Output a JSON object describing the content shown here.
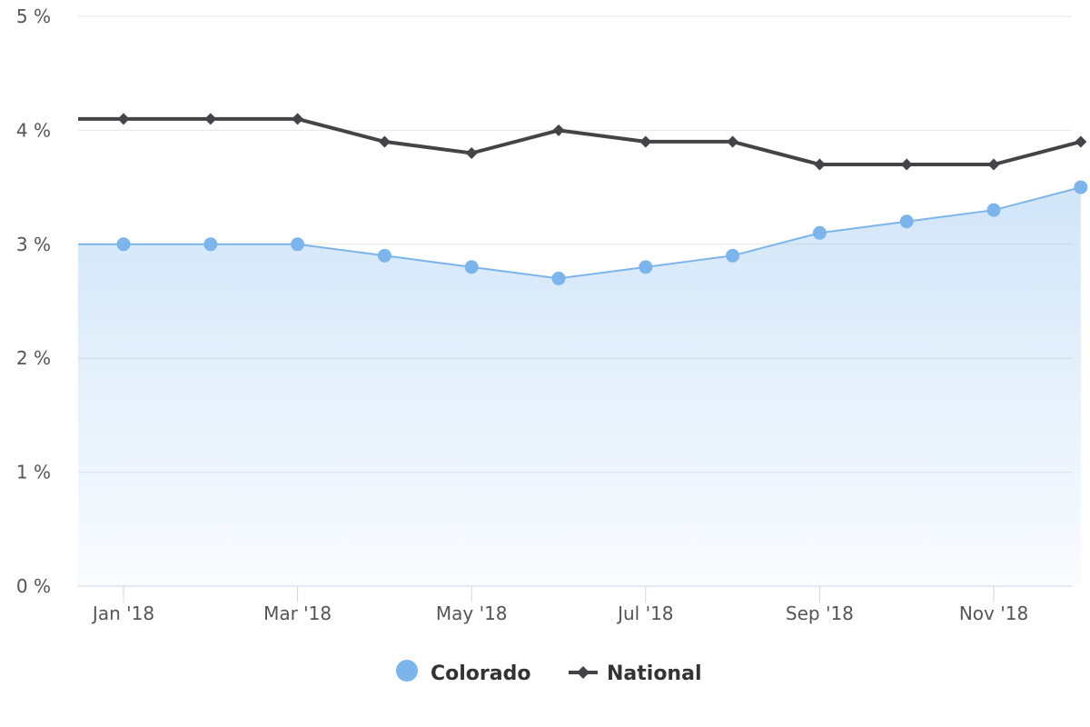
{
  "chart_data": {
    "type": "line",
    "x": [
      "2018-01",
      "2018-02",
      "2018-03",
      "2018-04",
      "2018-05",
      "2018-06",
      "2018-07",
      "2018-08",
      "2018-09",
      "2018-10",
      "2018-11",
      "2018-12"
    ],
    "x_tick_labels": [
      "Jan '18",
      "Mar '18",
      "May '18",
      "Jul '18",
      "Sep '18",
      "Nov '18"
    ],
    "y_tick_labels": [
      "0 %",
      "1 %",
      "2 %",
      "3 %",
      "4 %",
      "5 %"
    ],
    "ylim": [
      0,
      5
    ],
    "series": [
      {
        "name": "Colorado",
        "style": "area",
        "color": "#7cb5ec",
        "marker": "circle",
        "values": [
          3.0,
          3.0,
          3.0,
          2.9,
          2.8,
          2.7,
          2.8,
          2.9,
          3.1,
          3.2,
          3.3,
          3.5
        ]
      },
      {
        "name": "National",
        "style": "line",
        "color": "#434348",
        "marker": "diamond",
        "values": [
          4.1,
          4.1,
          4.1,
          3.9,
          3.8,
          4.0,
          3.9,
          3.9,
          3.7,
          3.7,
          3.7,
          3.9
        ]
      }
    ],
    "grid": true,
    "legend_position": "bottom-center"
  }
}
